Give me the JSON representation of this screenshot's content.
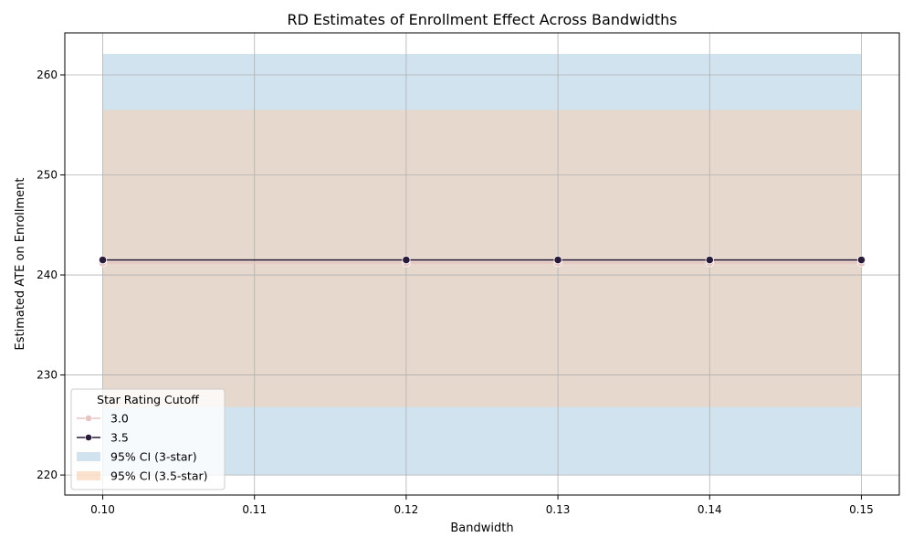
{
  "chart_data": {
    "type": "line",
    "title": "RD Estimates of Enrollment Effect Across Bandwidths",
    "xlabel": "Bandwidth",
    "ylabel": "Estimated ATE on Enrollment",
    "xlim": [
      0.0975,
      0.1525
    ],
    "ylim": [
      218,
      264.2
    ],
    "xticks": [
      0.1,
      0.11,
      0.12,
      0.13,
      0.14,
      0.15
    ],
    "xtick_labels": [
      "0.10",
      "0.11",
      "0.12",
      "0.13",
      "0.14",
      "0.15"
    ],
    "yticks": [
      220,
      230,
      240,
      250,
      260
    ],
    "ytick_labels": [
      "220",
      "230",
      "240",
      "250",
      "260"
    ],
    "grid": true,
    "x": [
      0.1,
      0.12,
      0.13,
      0.14,
      0.15
    ],
    "series": [
      {
        "name": "3.0",
        "values": [
          241.2,
          241.2,
          241.2,
          241.2,
          241.2
        ],
        "color": "#e8c4c0"
      },
      {
        "name": "3.5",
        "values": [
          241.5,
          241.5,
          241.5,
          241.5,
          241.5
        ],
        "color": "#2a1a3a"
      }
    ],
    "bands": [
      {
        "name": "95% CI (3-star)",
        "lower": [
          220.0,
          220.0,
          220.0,
          220.0,
          220.0
        ],
        "upper": [
          262.1,
          262.1,
          262.1,
          262.1,
          262.1
        ],
        "color": "#c2d9ea"
      },
      {
        "name": "95% CI (3.5-star)",
        "lower": [
          226.8,
          226.8,
          226.8,
          226.8,
          226.8
        ],
        "upper": [
          256.5,
          256.5,
          256.5,
          256.5,
          256.5
        ],
        "color": "#f8cfae"
      }
    ],
    "legend": {
      "title": "Star Rating Cutoff",
      "placement": "lower-left"
    }
  }
}
